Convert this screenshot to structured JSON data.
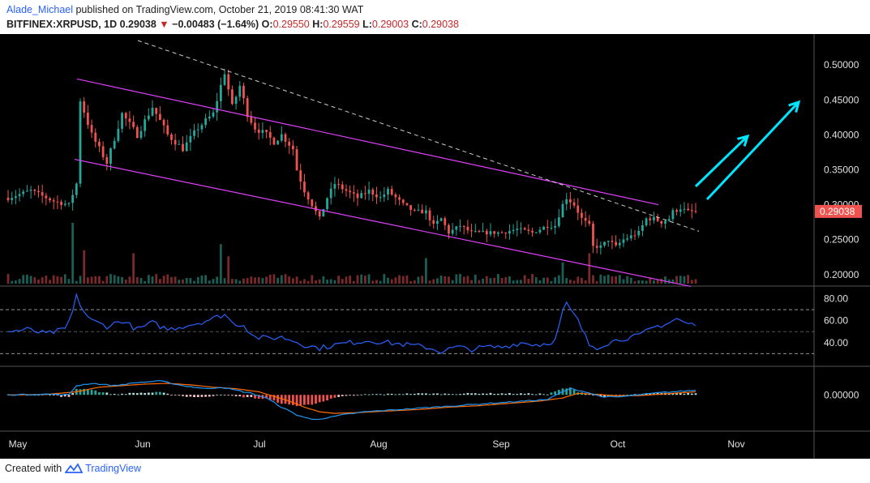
{
  "header": {
    "author": "Alade_Michael",
    "published": "published on TradingView.com, October 21, 2019 08:41:30 WAT",
    "symbol": "BITFINEX:XRPUSD, 1D",
    "last": "0.29038",
    "change": "−0.00483 (−1.64%)",
    "o_label": "O:",
    "o": "0.29550",
    "h_label": "H:",
    "h": "0.29559",
    "l_label": "L:",
    "l": "0.29003",
    "c_label": "C:",
    "c": "0.29038"
  },
  "footer": {
    "created": "Created with",
    "brand": "TradingView"
  },
  "colors": {
    "background": "#000000",
    "up": "#26a69a",
    "down": "#ef5350",
    "channel": "#e040fb",
    "trendline": "#ffffff",
    "arrow": "#00e5ff",
    "rsi": "#2962ff",
    "macd": "#2196f3",
    "signal": "#ff6d00",
    "price_tag": "#ef5350"
  },
  "chart_data": [
    {
      "type": "candlestick",
      "pane": "price",
      "x_labels": [
        "May",
        "Jun",
        "Jul",
        "Aug",
        "Sep",
        "Oct",
        "Nov"
      ],
      "y_ticks": [
        "0.50000",
        "0.45000",
        "0.40000",
        "0.35000",
        "0.30000",
        "0.25000",
        "0.20000"
      ],
      "ylim": [
        0.187,
        0.535
      ],
      "last_price_label": "0.29038",
      "last_price": 0.29038,
      "close_path": [
        [
          0,
          0.31
        ],
        [
          6,
          0.32
        ],
        [
          12,
          0.305
        ],
        [
          16,
          0.3
        ],
        [
          18,
          0.33
        ],
        [
          19,
          0.45
        ],
        [
          22,
          0.4
        ],
        [
          26,
          0.36
        ],
        [
          30,
          0.43
        ],
        [
          34,
          0.4
        ],
        [
          38,
          0.44
        ],
        [
          42,
          0.4
        ],
        [
          46,
          0.38
        ],
        [
          50,
          0.41
        ],
        [
          54,
          0.43
        ],
        [
          56,
          0.47
        ],
        [
          57,
          0.49
        ],
        [
          59,
          0.44
        ],
        [
          61,
          0.47
        ],
        [
          63,
          0.43
        ],
        [
          65,
          0.41
        ],
        [
          68,
          0.4
        ],
        [
          70,
          0.39
        ],
        [
          72,
          0.4
        ],
        [
          75,
          0.38
        ],
        [
          76,
          0.35
        ],
        [
          78,
          0.32
        ],
        [
          80,
          0.3
        ],
        [
          82,
          0.28
        ],
        [
          84,
          0.31
        ],
        [
          86,
          0.33
        ],
        [
          89,
          0.32
        ],
        [
          92,
          0.31
        ],
        [
          95,
          0.32
        ],
        [
          98,
          0.31
        ],
        [
          100,
          0.32
        ],
        [
          104,
          0.3
        ],
        [
          107,
          0.29
        ],
        [
          110,
          0.29
        ],
        [
          112,
          0.27
        ],
        [
          114,
          0.28
        ],
        [
          116,
          0.26
        ],
        [
          119,
          0.27
        ],
        [
          122,
          0.26
        ],
        [
          126,
          0.26
        ],
        [
          130,
          0.26
        ],
        [
          134,
          0.265
        ],
        [
          138,
          0.26
        ],
        [
          142,
          0.27
        ],
        [
          144,
          0.27
        ],
        [
          146,
          0.3
        ],
        [
          147,
          0.31
        ],
        [
          149,
          0.3
        ],
        [
          151,
          0.28
        ],
        [
          153,
          0.27
        ],
        [
          154,
          0.24
        ],
        [
          156,
          0.24
        ],
        [
          158,
          0.25
        ],
        [
          160,
          0.24
        ],
        [
          162,
          0.25
        ],
        [
          164,
          0.255
        ],
        [
          166,
          0.26
        ],
        [
          168,
          0.28
        ],
        [
          170,
          0.28
        ],
        [
          172,
          0.275
        ],
        [
          174,
          0.28
        ],
        [
          175,
          0.29
        ],
        [
          177,
          0.295
        ],
        [
          179,
          0.29
        ],
        [
          181,
          0.2904
        ]
      ]
    },
    {
      "type": "bar",
      "pane": "volume",
      "note": "volume histogram at bottom of price pane",
      "spikes": [
        [
          17,
          1.0
        ],
        [
          20,
          0.55
        ],
        [
          33,
          0.5
        ],
        [
          56,
          0.65
        ],
        [
          58,
          0.45
        ],
        [
          110,
          0.42
        ],
        [
          146,
          0.35
        ],
        [
          153,
          0.5
        ]
      ]
    },
    {
      "type": "line",
      "pane": "rsi",
      "y_ticks": [
        "80.00",
        "60.00",
        "40.00"
      ],
      "ylim": [
        20,
        90
      ],
      "levels": [
        70,
        50,
        30
      ],
      "values_path": [
        [
          0,
          50
        ],
        [
          5,
          52
        ],
        [
          10,
          48
        ],
        [
          15,
          52
        ],
        [
          17,
          68
        ],
        [
          18,
          82
        ],
        [
          20,
          68
        ],
        [
          22,
          60
        ],
        [
          26,
          55
        ],
        [
          30,
          60
        ],
        [
          34,
          52
        ],
        [
          38,
          58
        ],
        [
          42,
          52
        ],
        [
          46,
          55
        ],
        [
          50,
          58
        ],
        [
          54,
          62
        ],
        [
          57,
          66
        ],
        [
          59,
          58
        ],
        [
          62,
          56
        ],
        [
          65,
          45
        ],
        [
          68,
          44
        ],
        [
          72,
          45
        ],
        [
          75,
          42
        ],
        [
          78,
          38
        ],
        [
          82,
          35
        ],
        [
          86,
          38
        ],
        [
          90,
          40
        ],
        [
          95,
          42
        ],
        [
          100,
          40
        ],
        [
          105,
          38
        ],
        [
          110,
          36
        ],
        [
          114,
          32
        ],
        [
          118,
          36
        ],
        [
          122,
          34
        ],
        [
          126,
          36
        ],
        [
          130,
          36
        ],
        [
          135,
          40
        ],
        [
          140,
          38
        ],
        [
          144,
          42
        ],
        [
          146,
          68
        ],
        [
          147,
          75
        ],
        [
          150,
          60
        ],
        [
          153,
          38
        ],
        [
          155,
          36
        ],
        [
          158,
          40
        ],
        [
          162,
          44
        ],
        [
          166,
          46
        ],
        [
          170,
          54
        ],
        [
          174,
          58
        ],
        [
          176,
          62
        ],
        [
          178,
          58
        ],
        [
          181,
          56
        ]
      ]
    },
    {
      "type": "line",
      "pane": "macd",
      "y_ticks": [
        "0.00000"
      ],
      "ylim": [
        -0.045,
        0.035
      ],
      "macd_path": [
        [
          0,
          0
        ],
        [
          10,
          0.001
        ],
        [
          16,
          0
        ],
        [
          18,
          0.012
        ],
        [
          22,
          0.015
        ],
        [
          28,
          0.012
        ],
        [
          34,
          0.016
        ],
        [
          40,
          0.018
        ],
        [
          46,
          0.012
        ],
        [
          52,
          0.008
        ],
        [
          56,
          0.01
        ],
        [
          60,
          0.006
        ],
        [
          64,
          0.002
        ],
        [
          68,
          -0.004
        ],
        [
          72,
          -0.016
        ],
        [
          76,
          -0.026
        ],
        [
          80,
          -0.032
        ],
        [
          84,
          -0.03
        ],
        [
          88,
          -0.026
        ],
        [
          94,
          -0.022
        ],
        [
          100,
          -0.02
        ],
        [
          106,
          -0.018
        ],
        [
          112,
          -0.016
        ],
        [
          118,
          -0.014
        ],
        [
          124,
          -0.012
        ],
        [
          130,
          -0.01
        ],
        [
          136,
          -0.008
        ],
        [
          142,
          -0.006
        ],
        [
          146,
          0.004
        ],
        [
          148,
          0.008
        ],
        [
          152,
          0.004
        ],
        [
          156,
          -0.002
        ],
        [
          160,
          -0.003
        ],
        [
          166,
          0
        ],
        [
          172,
          0.003
        ],
        [
          178,
          0.005
        ],
        [
          181,
          0.006
        ]
      ],
      "signal_path": [
        [
          0,
          0
        ],
        [
          10,
          0.0005
        ],
        [
          18,
          0.004
        ],
        [
          24,
          0.01
        ],
        [
          30,
          0.012
        ],
        [
          36,
          0.014
        ],
        [
          42,
          0.015
        ],
        [
          48,
          0.013
        ],
        [
          54,
          0.01
        ],
        [
          60,
          0.008
        ],
        [
          66,
          0.004
        ],
        [
          70,
          -0.002
        ],
        [
          74,
          -0.008
        ],
        [
          78,
          -0.016
        ],
        [
          82,
          -0.022
        ],
        [
          86,
          -0.024
        ],
        [
          92,
          -0.023
        ],
        [
          100,
          -0.021
        ],
        [
          108,
          -0.019
        ],
        [
          116,
          -0.016
        ],
        [
          124,
          -0.014
        ],
        [
          132,
          -0.011
        ],
        [
          140,
          -0.008
        ],
        [
          146,
          -0.004
        ],
        [
          150,
          0.002
        ],
        [
          154,
          0.001
        ],
        [
          160,
          -0.001
        ],
        [
          166,
          -0.001
        ],
        [
          172,
          0.001
        ],
        [
          178,
          0.003
        ],
        [
          181,
          0.004
        ]
      ]
    }
  ]
}
